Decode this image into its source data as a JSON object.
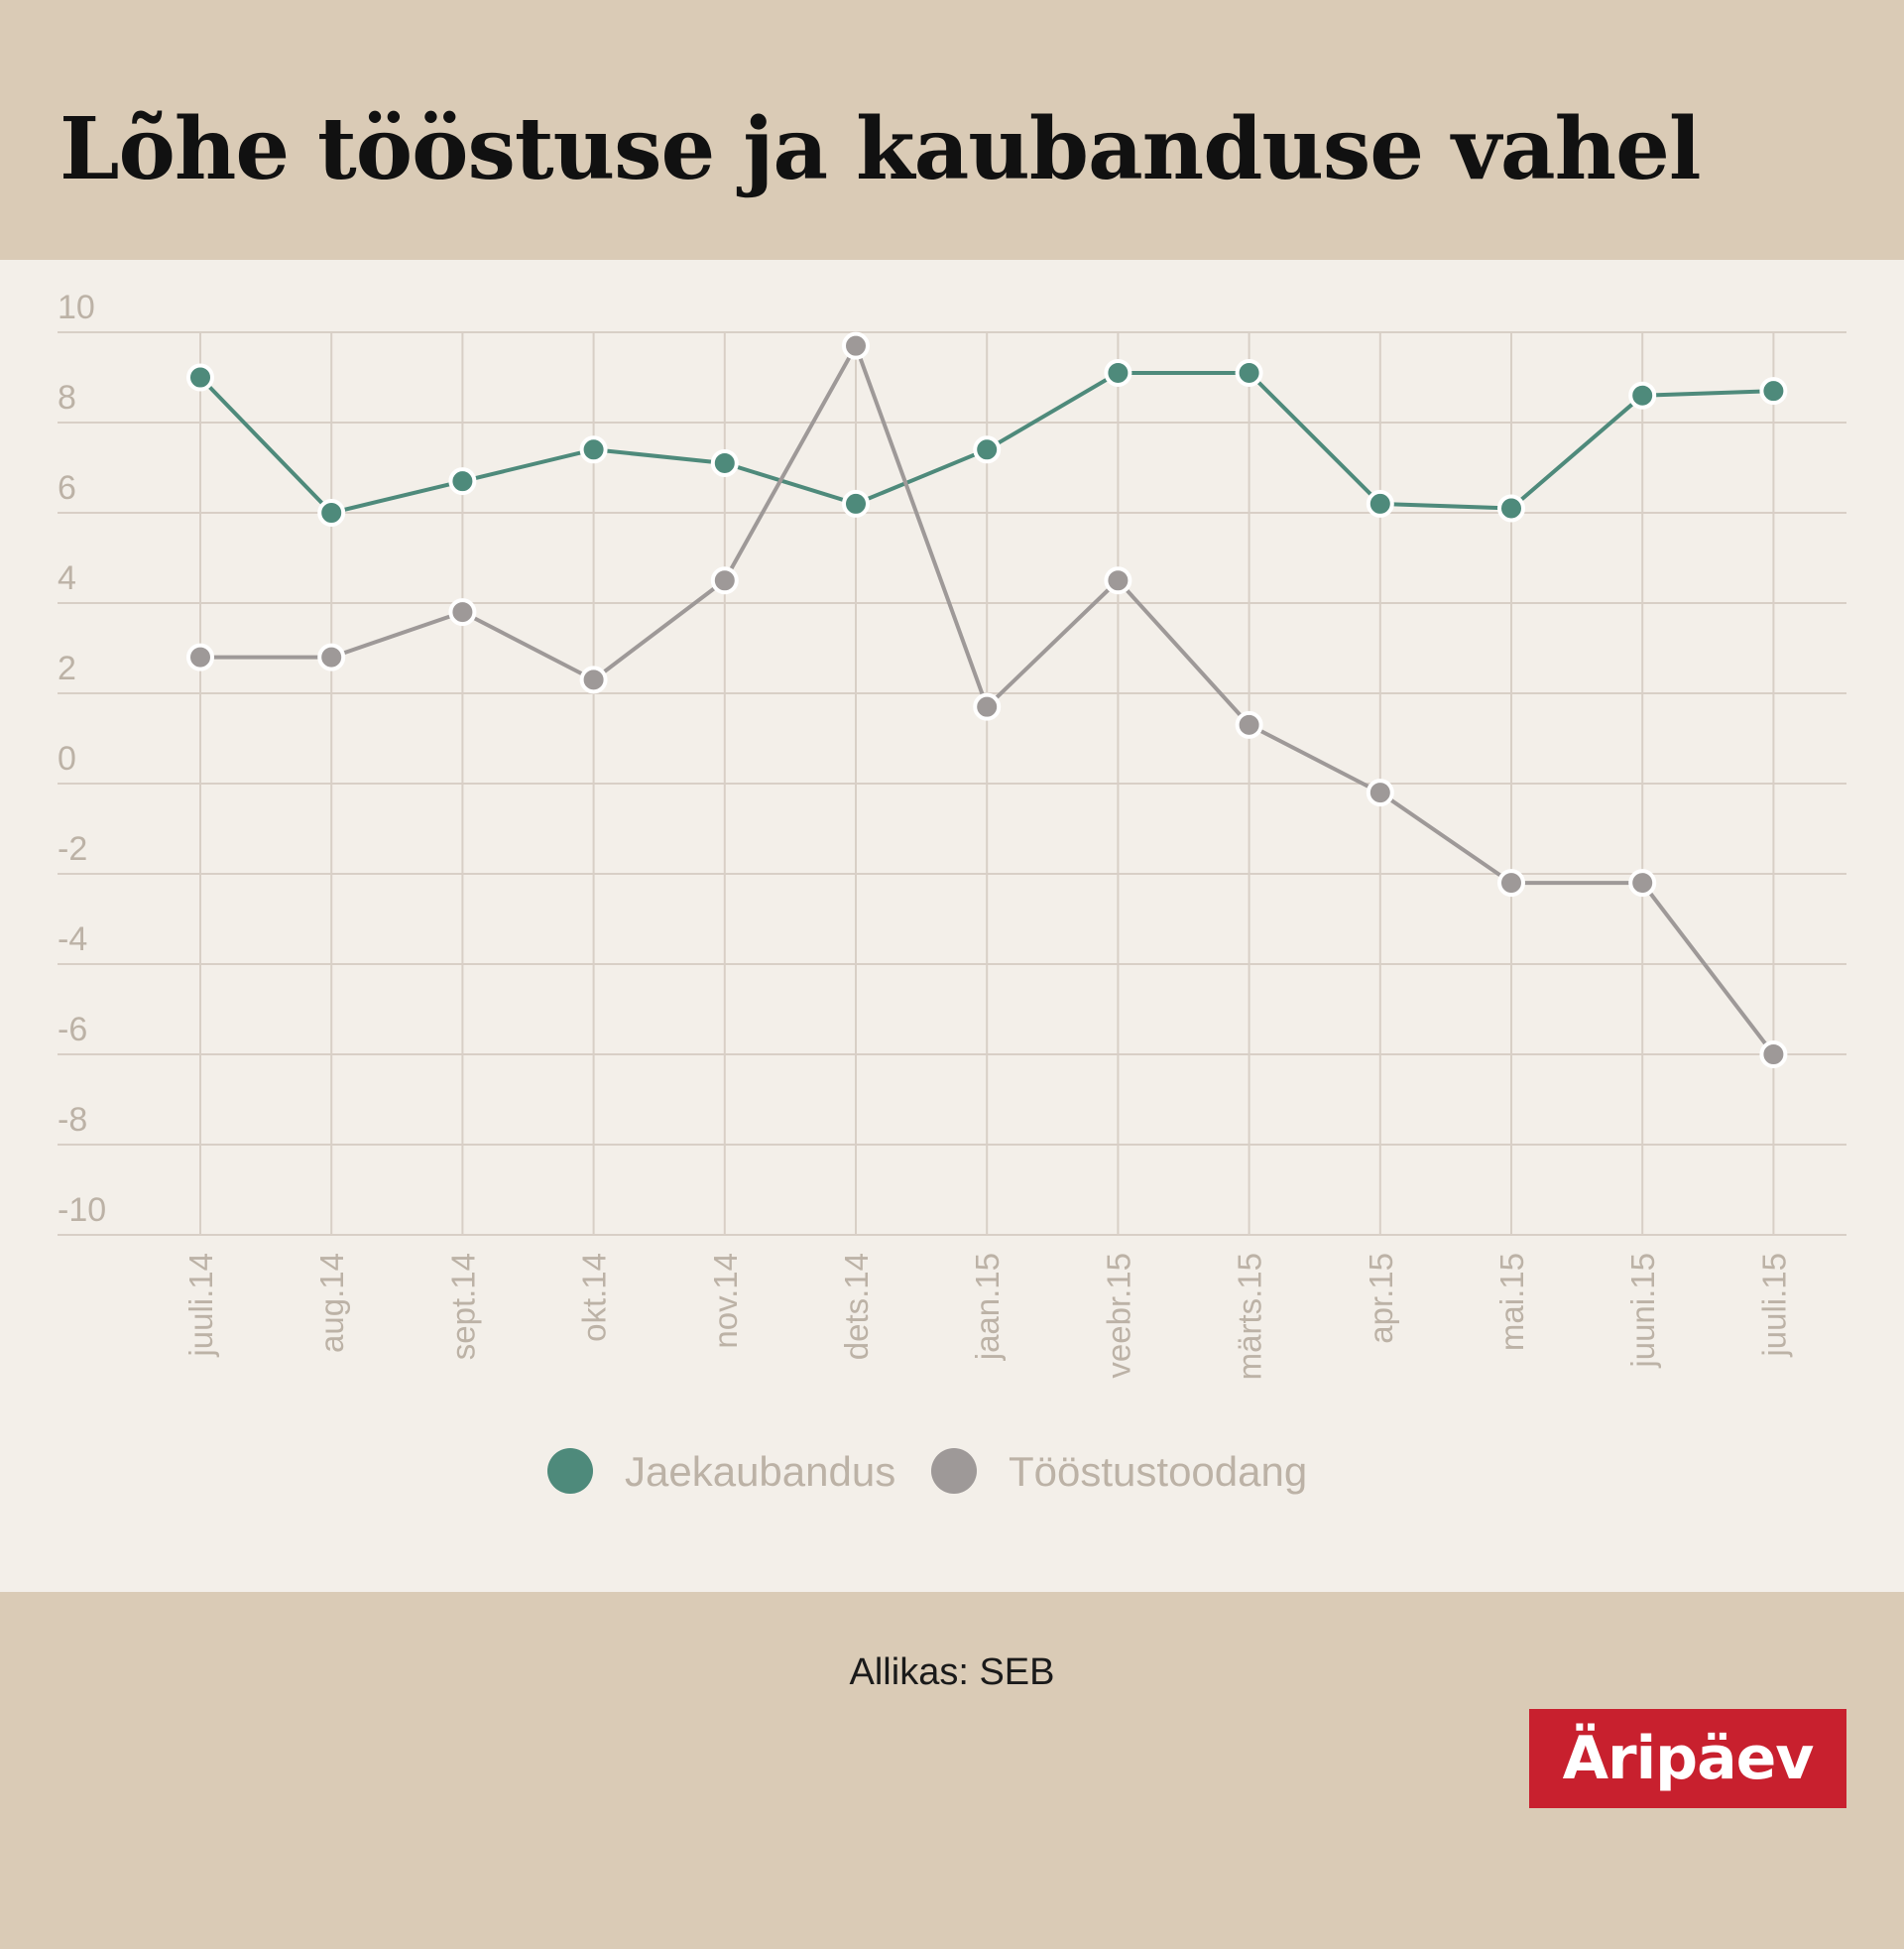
{
  "header": {
    "title": "Lõhe tööstuse ja kaubanduse vahel"
  },
  "footer": {
    "source": "Allikas: SEB",
    "logo": "Äripäev"
  },
  "colors": {
    "jaekaubandus": "#4e8a7b",
    "tööstustoodang": "#9e9998",
    "grid": "#d8cfc6",
    "axis_text": "#bcb2a6"
  },
  "chart_data": {
    "type": "line",
    "title": "Lõhe tööstuse ja kaubanduse vahel",
    "xlabel": "",
    "ylabel": "",
    "ylim": [
      -10,
      10
    ],
    "yticks": [
      10,
      8,
      6,
      4,
      2,
      0,
      -2,
      -4,
      -6,
      -8,
      -10
    ],
    "grid": true,
    "legend_position": "bottom",
    "categories": [
      "juuli.14",
      "aug.14",
      "sept.14",
      "okt.14",
      "nov.14",
      "dets.14",
      "jaan.15",
      "veebr.15",
      "märts.15",
      "apr.15",
      "mai.15",
      "juuni.15",
      "juuli.15"
    ],
    "series": [
      {
        "name": "Jaekaubandus",
        "color": "#4e8a7b",
        "values": [
          9.0,
          6.0,
          6.7,
          7.4,
          7.1,
          6.2,
          7.4,
          9.1,
          9.1,
          6.2,
          6.1,
          8.6,
          8.7
        ]
      },
      {
        "name": "Tööstustoodang",
        "color": "#9e9998",
        "values": [
          2.8,
          2.8,
          3.8,
          2.3,
          4.5,
          9.7,
          1.7,
          4.5,
          1.3,
          -0.2,
          -2.2,
          -2.2,
          -6.0
        ]
      }
    ],
    "source": "Allikas: SEB"
  }
}
